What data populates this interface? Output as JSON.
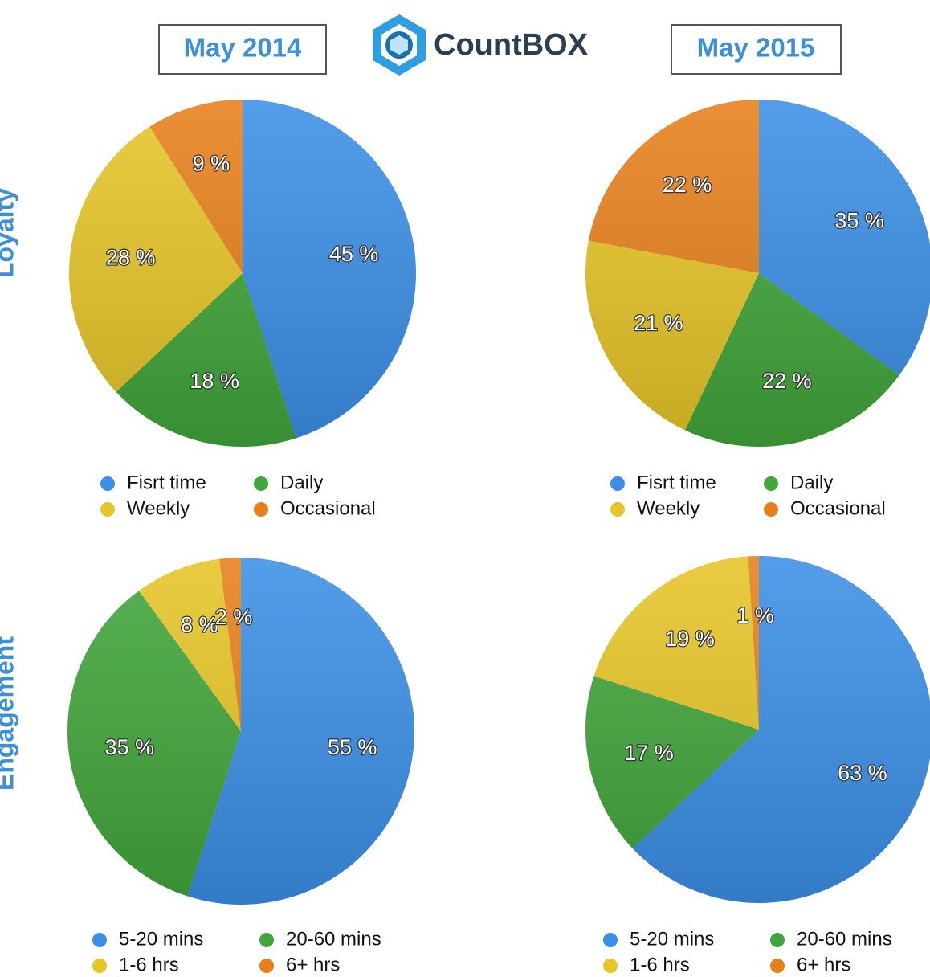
{
  "header": {
    "left": "May 2014",
    "brand": "CountBOX",
    "right": "May 2015"
  },
  "row_labels": [
    "Loyalty",
    "Engagement"
  ],
  "chart_data": [
    {
      "type": "pie",
      "categories": [
        "Fisrt time",
        "Daily",
        "Weekly",
        "Occasional"
      ],
      "values": [
        45,
        18,
        28,
        9
      ],
      "value_labels": [
        "45 %",
        "18 %",
        "28 %",
        "9 %"
      ],
      "colors": [
        "#3b8fe6",
        "#41a63b",
        "#e6c527",
        "#e7801b"
      ]
    },
    {
      "type": "pie",
      "categories": [
        "Fisrt time",
        "Daily",
        "Weekly",
        "Occasional"
      ],
      "values": [
        35,
        22,
        21,
        22
      ],
      "value_labels": [
        "35 %",
        "22 %",
        "21 %",
        "22 %"
      ],
      "colors": [
        "#3b8fe6",
        "#41a63b",
        "#e6c527",
        "#e7801b"
      ]
    },
    {
      "type": "pie",
      "categories": [
        "5-20 mins",
        "20-60 mins",
        "1-6 hrs",
        "6+ hrs"
      ],
      "values": [
        55,
        35,
        8,
        2
      ],
      "value_labels": [
        "55 %",
        "35 %",
        "8 %",
        "2 %"
      ],
      "colors": [
        "#3b8fe6",
        "#41a63b",
        "#e6c527",
        "#e7801b"
      ]
    },
    {
      "type": "pie",
      "categories": [
        "5-20 mins",
        "20-60 mins",
        "1-6 hrs",
        "6+ hrs"
      ],
      "values": [
        63,
        17,
        19,
        1
      ],
      "value_labels": [
        "63 %",
        "17 %",
        "19 %",
        "1 %"
      ],
      "colors": [
        "#3b8fe6",
        "#41a63b",
        "#e6c527",
        "#e7801b"
      ]
    }
  ]
}
